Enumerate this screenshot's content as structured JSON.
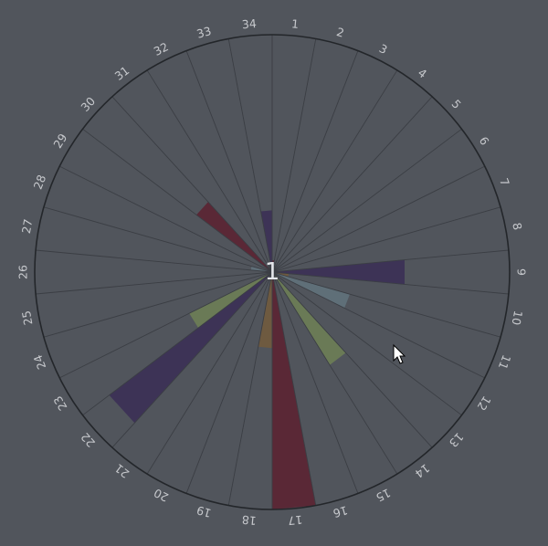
{
  "chart_data": {
    "type": "polar-bar",
    "title": "",
    "center_label": "1",
    "sector_count": 34,
    "sectors": [
      "1",
      "2",
      "3",
      "4",
      "5",
      "6",
      "7",
      "8",
      "9",
      "10",
      "11",
      "12",
      "13",
      "14",
      "15",
      "16",
      "17",
      "18",
      "19",
      "20",
      "21",
      "22",
      "23",
      "24",
      "25",
      "26",
      "27",
      "28",
      "29",
      "30",
      "31",
      "32",
      "33",
      "34"
    ],
    "radial_range": [
      0,
      10
    ],
    "grid": true,
    "bars": [
      {
        "sector": "34",
        "value": 2.6,
        "color": "#3d3356"
      },
      {
        "sector": "1",
        "value": 0.5,
        "color": "#5a2836"
      },
      {
        "sector": "9",
        "value": 5.6,
        "color": "#3d3356"
      },
      {
        "sector": "10",
        "value": 0.7,
        "color": "#6e5a40"
      },
      {
        "sector": "11",
        "value": 3.4,
        "color": "#5f6f78"
      },
      {
        "sector": "14",
        "value": 4.6,
        "color": "#6a7a56"
      },
      {
        "sector": "17",
        "value": 10.0,
        "color": "#5a2836"
      },
      {
        "sector": "18",
        "value": 3.2,
        "color": "#6e5a40"
      },
      {
        "sector": "22",
        "value": 8.6,
        "color": "#3d3356"
      },
      {
        "sector": "23",
        "value": 3.9,
        "color": "#6a7a56"
      },
      {
        "sector": "27",
        "value": 0.9,
        "color": "#5f6f78"
      },
      {
        "sector": "30",
        "value": 4.0,
        "color": "#5a2836"
      }
    ]
  },
  "colors": {
    "background": "#51555c",
    "rim": "#23262a",
    "spokes": "#3b3e44",
    "labels": "#c6c8cc"
  }
}
